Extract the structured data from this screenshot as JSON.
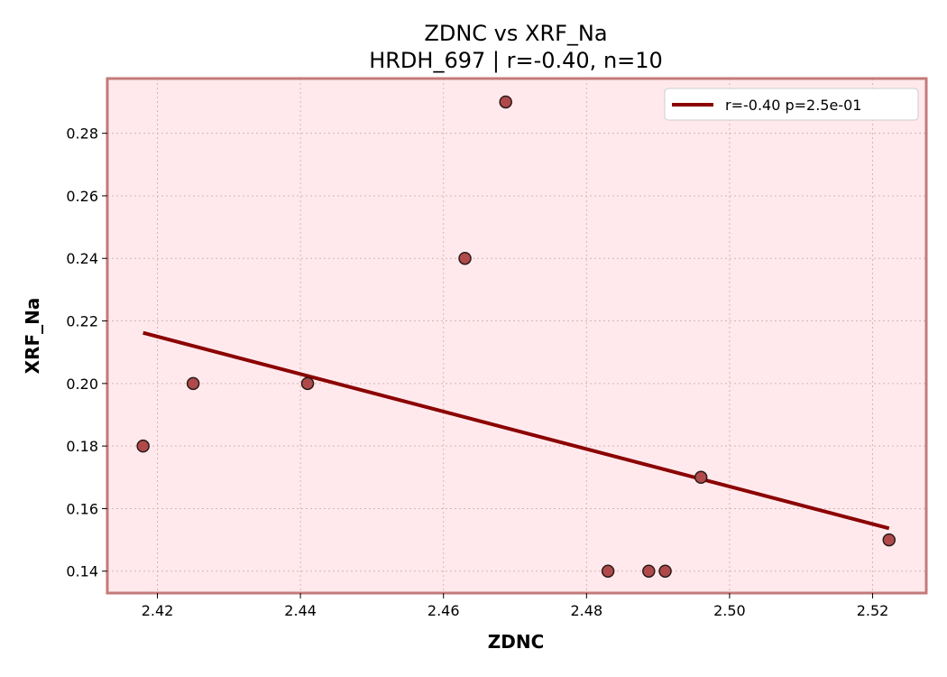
{
  "chart_data": {
    "type": "scatter",
    "title": "ZDNC vs XRF_Na",
    "subtitle": "HRDH_697 | r=-0.40, n=10",
    "xlabel": "ZDNC",
    "ylabel": "XRF_Na",
    "xlim": [
      2.413,
      2.5275
    ],
    "ylim": [
      0.133,
      0.2975
    ],
    "x_ticks": [
      2.42,
      2.44,
      2.46,
      2.48,
      2.5,
      2.52
    ],
    "x_tick_labels": [
      "2.42",
      "2.44",
      "2.46",
      "2.48",
      "2.50",
      "2.52"
    ],
    "y_ticks": [
      0.14,
      0.16,
      0.18,
      0.2,
      0.22,
      0.24,
      0.26,
      0.28
    ],
    "y_tick_labels": [
      "0.14",
      "0.16",
      "0.18",
      "0.20",
      "0.22",
      "0.24",
      "0.26",
      "0.28"
    ],
    "grid": true,
    "legend_position": "top-right",
    "series": [
      {
        "kind": "points",
        "x": [
          2.418,
          2.425,
          2.441,
          2.463,
          2.4687,
          2.483,
          2.4887,
          2.491,
          2.496,
          2.5223
        ],
        "y": [
          0.18,
          0.2,
          0.2,
          0.24,
          0.29,
          0.14,
          0.14,
          0.14,
          0.17,
          0.15
        ],
        "color": "#b04a4a"
      },
      {
        "kind": "fit-line",
        "name": "r=-0.40  p=2.5e-01",
        "x": [
          2.418,
          2.5223
        ],
        "y": [
          0.2162,
          0.1537
        ],
        "color": "#8b0000"
      }
    ],
    "colors": {
      "plot_background": "#ffe9ec",
      "frame": "#c47a7a"
    }
  }
}
